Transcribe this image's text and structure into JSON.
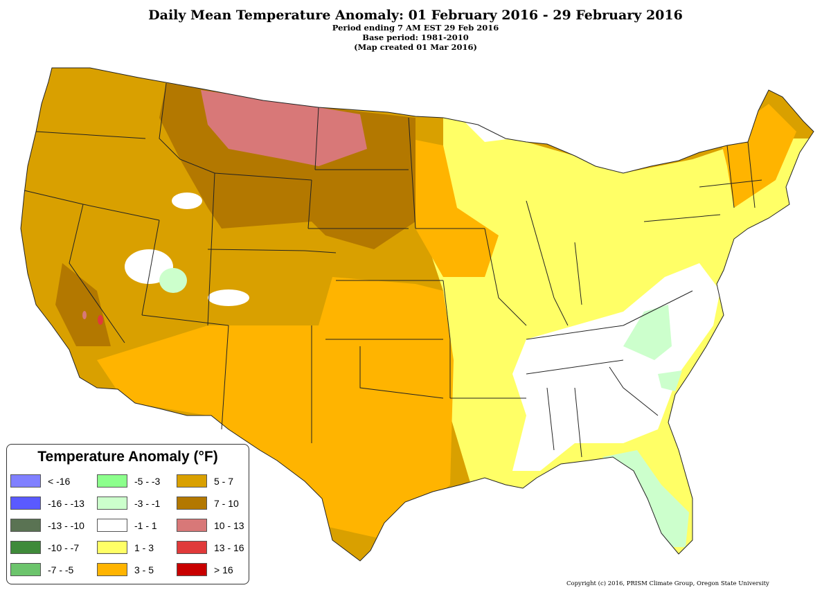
{
  "header": {
    "title": "Daily Mean Temperature Anomaly: 01 February 2016 - 29 February 2016",
    "line1": "Period ending 7 AM EST 29 Feb 2016",
    "line2": "Base period: 1981-2010",
    "line3": "(Map created 01 Mar 2016)"
  },
  "legend": {
    "title": "Temperature Anomaly (°F)",
    "items": [
      {
        "label": "< -16",
        "color": "#8080ff"
      },
      {
        "label": "-16 - -13",
        "color": "#5a5aff"
      },
      {
        "label": "-13 - -10",
        "color": "#5a7353"
      },
      {
        "label": "-10 - -7",
        "color": "#3f8a3a"
      },
      {
        "label": "-7 - -5",
        "color": "#6cc46c"
      },
      {
        "label": "-5 - -3",
        "color": "#8cff8c"
      },
      {
        "label": "-3 - -1",
        "color": "#ccffcc"
      },
      {
        "label": "-1 - 1",
        "color": "#ffffff"
      },
      {
        "label": "1 - 3",
        "color": "#ffff66"
      },
      {
        "label": "3 - 5",
        "color": "#ffb400"
      },
      {
        "label": "5 - 7",
        "color": "#d9a000"
      },
      {
        "label": "7 - 10",
        "color": "#b37800"
      },
      {
        "label": "10 - 13",
        "color": "#d87878"
      },
      {
        "label": "13 - 16",
        "color": "#e03a3a"
      },
      {
        "label": "> 16",
        "color": "#c80000"
      }
    ]
  },
  "copyright": "Copyright (c) 2016, PRISM Climate Group, Oregon State University"
}
